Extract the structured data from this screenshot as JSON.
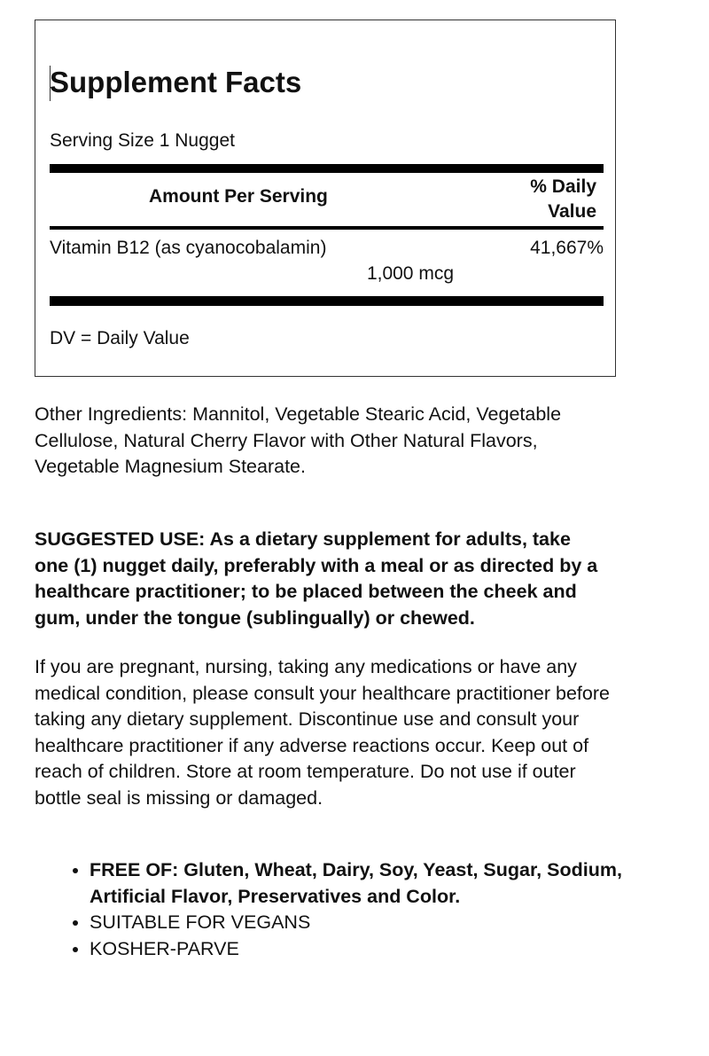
{
  "facts": {
    "title": "Supplement Facts",
    "serving_size": "Serving Size 1 Nugget",
    "header_amount": "Amount Per Serving",
    "header_dv_line1": "% Daily",
    "header_dv_line2": "Value",
    "rows": [
      {
        "nutrient": "Vitamin B12 (as cyanocobalamin)",
        "amount": "1,000 mcg",
        "dv": "41,667%"
      }
    ],
    "footnote": "DV = Daily Value"
  },
  "other_ingredients": "Other Ingredients: Mannitol, Vegetable Stearic Acid, Vegetable Cellulose, Natural Cherry Flavor with Other Natural Flavors, Vegetable Magnesium Stearate.",
  "suggested_use": "SUGGESTED USE: As a dietary supplement for adults, take one (1) nugget daily, preferably with a meal or as directed by a healthcare practitioner; to be placed between the cheek and gum, under the tongue (sublingually) or chewed.",
  "warning": "If you are pregnant, nursing, taking any medications or have any medical condition, please consult your healthcare practitioner before taking any dietary supplement. Discontinue use and consult your healthcare practitioner if any adverse reactions occur. Keep out of reach of children. Store at room temperature. Do not use if outer bottle seal is missing or damaged.",
  "features": [
    "FREE OF: Gluten, Wheat, Dairy, Soy, Yeast, Sugar, Sodium, Artificial Flavor, Preservatives and Color.",
    "SUITABLE FOR VEGANS",
    "KOSHER-PARVE"
  ]
}
